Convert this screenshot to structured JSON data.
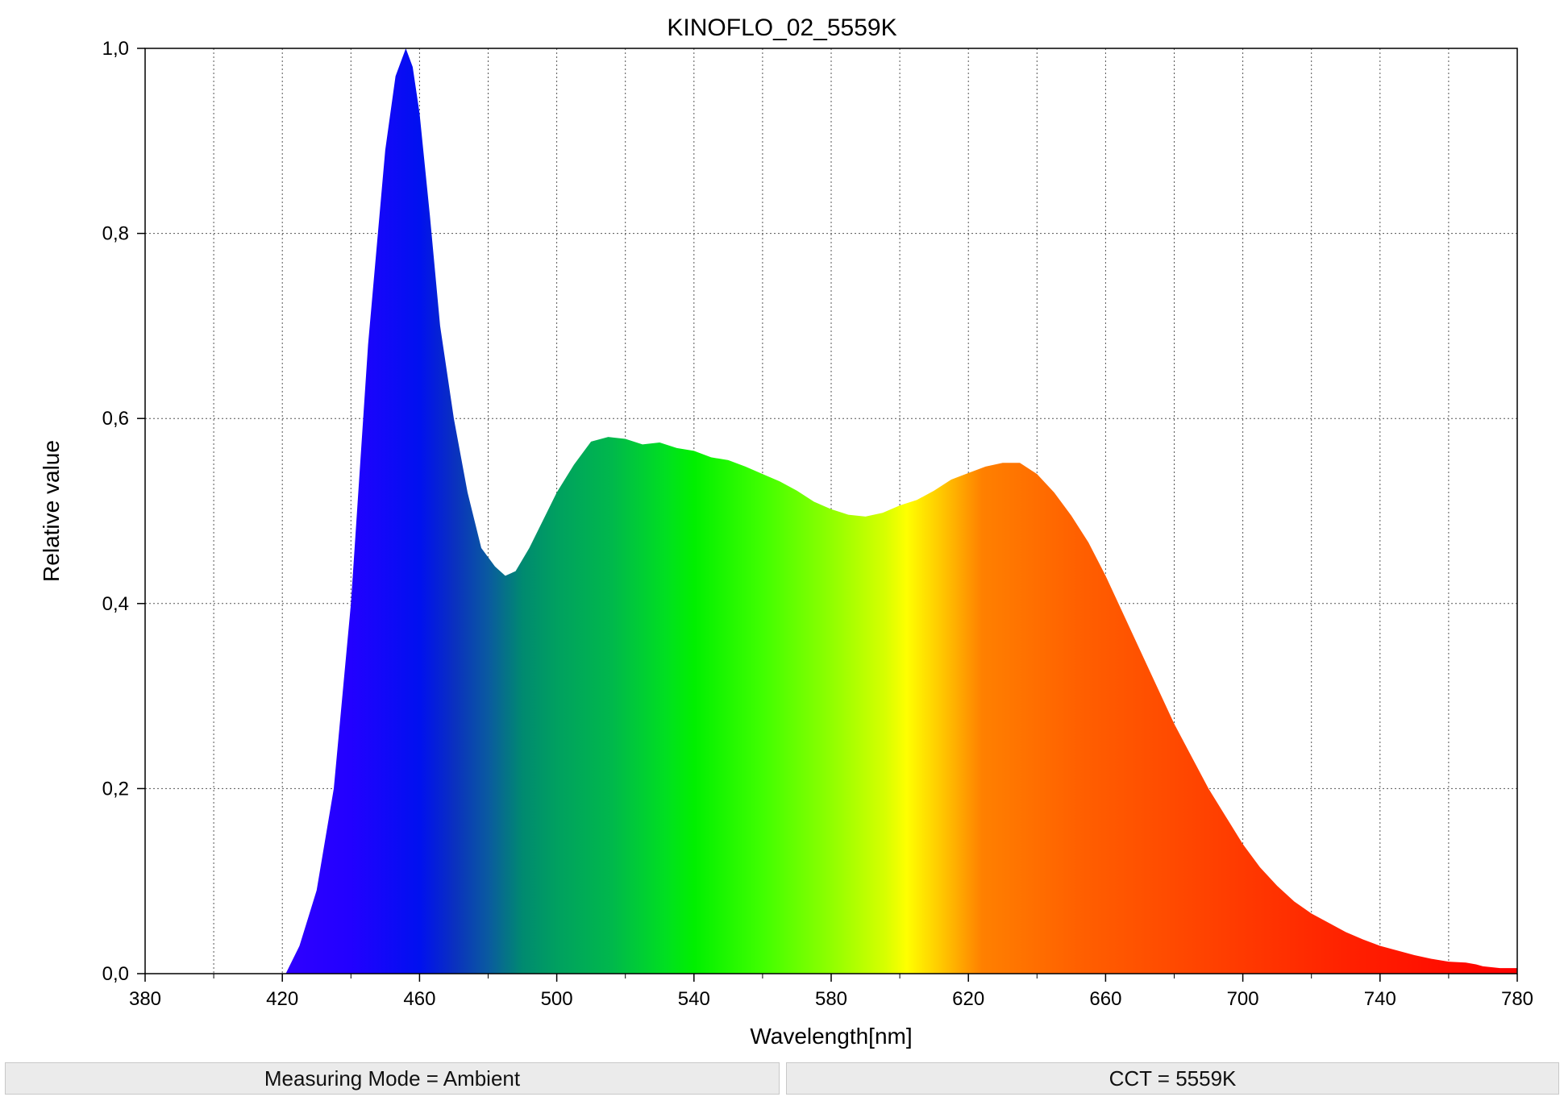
{
  "chart_data": {
    "type": "area",
    "title": "KINOFLO_02_5559K",
    "xlabel": "Wavelength[nm]",
    "ylabel": "Relative value",
    "xlim": [
      380,
      780
    ],
    "ylim": [
      0,
      1.0
    ],
    "x_ticks": [
      380,
      420,
      460,
      500,
      540,
      580,
      620,
      660,
      700,
      740,
      780
    ],
    "x_tick_labels": [
      "380",
      "420",
      "460",
      "500",
      "540",
      "580",
      "620",
      "660",
      "700",
      "740",
      "780"
    ],
    "y_ticks": [
      0,
      0.2,
      0.4,
      0.6,
      0.8,
      1.0
    ],
    "y_tick_labels": [
      "0,0",
      "0,2",
      "0,4",
      "0,6",
      "0,8",
      "1,0"
    ],
    "grid": true,
    "fill": "visible-spectrum gradient",
    "series": [
      {
        "x": [
          421,
          425,
          430,
          435,
          440,
          445,
          450,
          453,
          456,
          458,
          460,
          463,
          466,
          470,
          474,
          478,
          482,
          485,
          488,
          492,
          496,
          500,
          505,
          510,
          515,
          520,
          525,
          530,
          535,
          540,
          545,
          550,
          555,
          560,
          565,
          570,
          575,
          580,
          585,
          590,
          595,
          600,
          605,
          610,
          615,
          620,
          625,
          630,
          635,
          640,
          645,
          650,
          655,
          660,
          665,
          670,
          675,
          680,
          685,
          690,
          695,
          700,
          705,
          710,
          715,
          720,
          725,
          730,
          735,
          740,
          745,
          750,
          755,
          760,
          765,
          768,
          770,
          775,
          780
        ],
        "y": [
          0.0,
          0.03,
          0.09,
          0.2,
          0.4,
          0.68,
          0.89,
          0.97,
          1.0,
          0.98,
          0.93,
          0.82,
          0.7,
          0.6,
          0.52,
          0.46,
          0.44,
          0.43,
          0.435,
          0.46,
          0.49,
          0.52,
          0.55,
          0.575,
          0.58,
          0.578,
          0.572,
          0.574,
          0.568,
          0.565,
          0.558,
          0.555,
          0.548,
          0.54,
          0.532,
          0.522,
          0.51,
          0.502,
          0.496,
          0.494,
          0.498,
          0.506,
          0.512,
          0.522,
          0.534,
          0.541,
          0.548,
          0.552,
          0.552,
          0.54,
          0.52,
          0.495,
          0.466,
          0.43,
          0.39,
          0.35,
          0.31,
          0.27,
          0.235,
          0.2,
          0.17,
          0.14,
          0.115,
          0.095,
          0.078,
          0.065,
          0.055,
          0.045,
          0.037,
          0.03,
          0.025,
          0.02,
          0.016,
          0.013,
          0.012,
          0.01,
          0.008,
          0.006,
          0.006
        ]
      }
    ]
  },
  "status": {
    "left": "Measuring Mode = Ambient",
    "right": "CCT = 5559K"
  }
}
